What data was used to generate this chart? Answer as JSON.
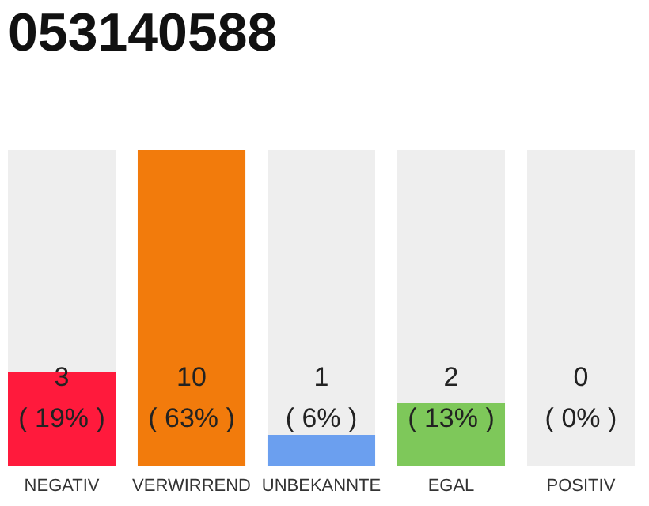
{
  "chart_data": {
    "type": "bar",
    "title": "053140588",
    "categories": [
      "NEGATIV",
      "VERWIRREND",
      "UNBEKANNTE",
      "EGAL",
      "POSITIV"
    ],
    "values": [
      3,
      10,
      1,
      2,
      0
    ],
    "colors": [
      "#ff1a3c",
      "#f27b0c",
      "#6b9fef",
      "#7ec85a",
      "#b0b0b0"
    ],
    "value_labels": [
      "3\n( 19% )",
      "10\n( 63% )",
      "1\n( 6% )",
      "2\n( 13% )",
      "0\n( 0% )"
    ]
  }
}
